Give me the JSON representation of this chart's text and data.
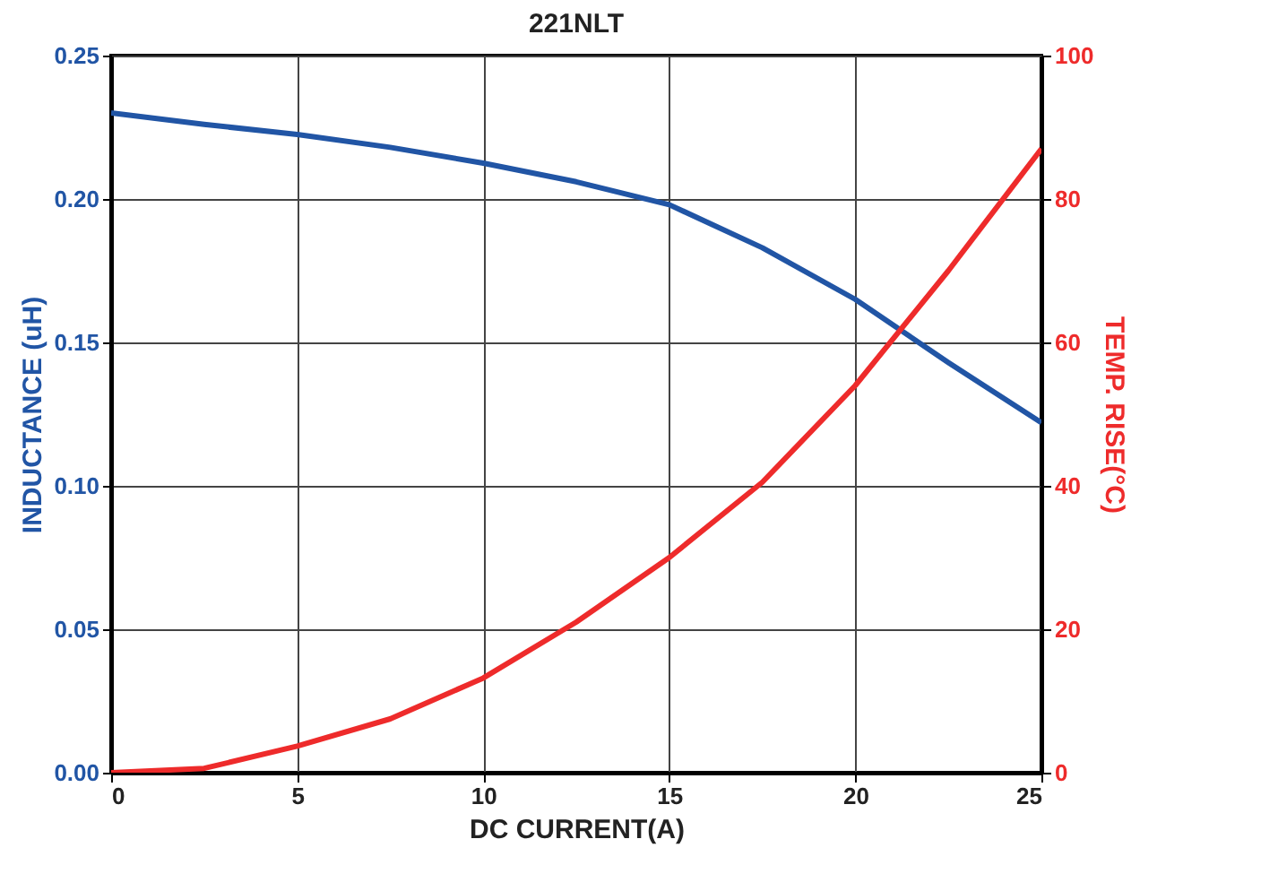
{
  "chart_data": {
    "type": "line",
    "title": "221NLT",
    "xlabel": "DC CURRENT(A)",
    "ylabel": "INDUCTANCE (uH)",
    "y2label": "TEMP. RISE(°C)",
    "x": [
      0,
      2.5,
      5,
      7.5,
      10,
      12.5,
      15,
      17.5,
      20,
      22.5,
      25
    ],
    "series": [
      {
        "color": "#2155a5",
        "values": [
          0.23,
          0.226,
          0.2225,
          0.218,
          0.2125,
          0.206,
          0.198,
          0.183,
          0.165,
          0.143,
          0.122
        ]
      },
      {
        "color": "#ee2b2b",
        "axis": "y2",
        "values": [
          0,
          0.6,
          3.7,
          7.5,
          13.2,
          21,
          30,
          40.5,
          54,
          70,
          87
        ]
      }
    ],
    "xlim": [
      0,
      25
    ],
    "xticks": [
      0,
      5,
      10,
      15,
      20,
      25
    ],
    "ylim": [
      0,
      0.25
    ],
    "yticks": [
      {
        "value": 0,
        "label": "0.00"
      },
      {
        "value": 0.05,
        "label": "0.05"
      },
      {
        "value": 0.1,
        "label": "0.10"
      },
      {
        "value": 0.15,
        "label": "0.15"
      },
      {
        "value": 0.2,
        "label": "0.20"
      },
      {
        "value": 0.25,
        "label": "0.25"
      }
    ],
    "y2lim": [
      0,
      100
    ],
    "y2ticks": [
      0,
      20,
      40,
      60,
      80,
      100
    ],
    "grid": true
  }
}
